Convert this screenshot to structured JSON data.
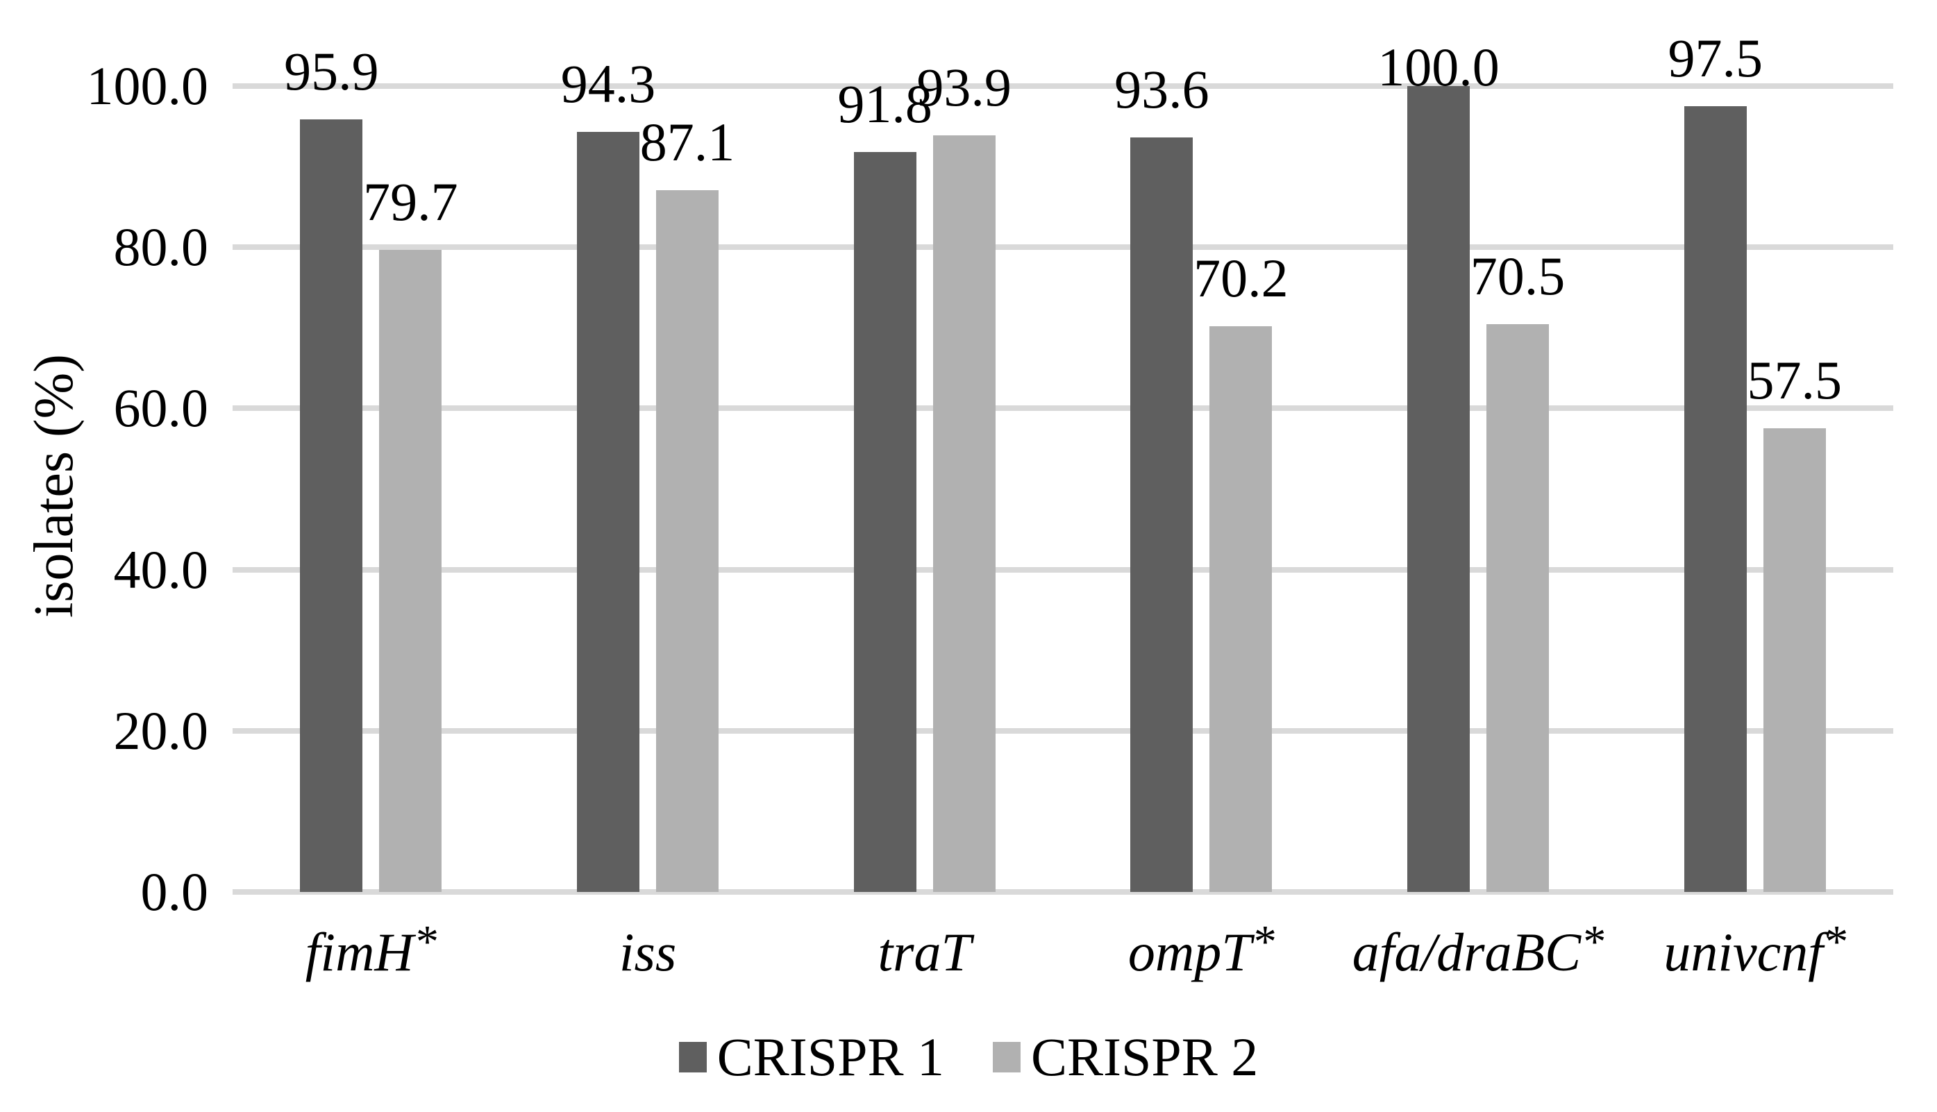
{
  "chart_data": {
    "type": "bar",
    "title": "",
    "xlabel": "",
    "ylabel": "isolates (%)",
    "ylim": [
      0,
      100
    ],
    "grid": true,
    "legend_position": "bottom",
    "yticks": [
      0,
      20,
      40,
      60,
      80,
      100
    ],
    "ytick_labels": [
      "0.0",
      "20.0",
      "40.0",
      "60.0",
      "80.0",
      "100.0"
    ],
    "categories": [
      "fimH*",
      "iss",
      "traT",
      "ompT*",
      "afa/draBC*",
      "univcnf*"
    ],
    "series": [
      {
        "name": "CRISPR 1",
        "color": "#5f5f5f",
        "values": [
          95.9,
          94.3,
          91.8,
          93.6,
          100.0,
          97.5
        ],
        "labels": [
          "95.9",
          "94.3",
          "91.8",
          "93.6",
          "100.0",
          "97.5"
        ]
      },
      {
        "name": "CRISPR 2",
        "color": "#b1b1b1",
        "values": [
          79.7,
          87.1,
          93.9,
          70.2,
          70.5,
          57.5
        ],
        "labels": [
          "79.7",
          "87.1",
          "93.9",
          "70.2",
          "70.5",
          "57.5"
        ]
      }
    ],
    "colors": {
      "gridline": "#d9d9d9",
      "axis_line": "#d9d9d9",
      "text": "#000000",
      "background": "#ffffff"
    }
  }
}
